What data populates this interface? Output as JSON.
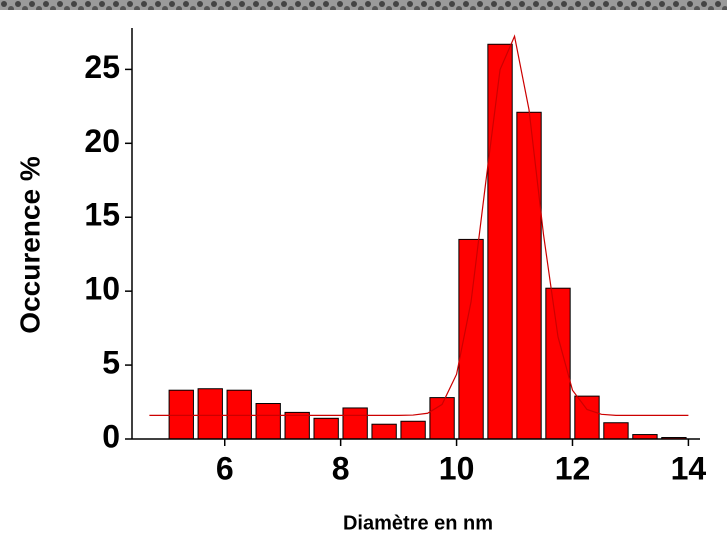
{
  "chart_data": {
    "type": "histogram",
    "x_label": "Diamètre en nm",
    "y_label": "Occurence %",
    "bins": [
      5.0,
      5.5,
      6.0,
      6.5,
      7.0,
      7.5,
      8.0,
      8.5,
      9.0,
      9.5,
      10.0,
      10.5,
      11.0,
      11.5,
      12.0,
      12.5,
      13.0,
      13.5,
      14.0
    ],
    "values": [
      3.3,
      3.4,
      3.3,
      2.4,
      1.8,
      1.4,
      2.1,
      1.0,
      1.2,
      2.8,
      13.5,
      26.7,
      22.1,
      10.2,
      2.9,
      1.1,
      0.3,
      0.1
    ],
    "color": "#ff0000",
    "fit": {
      "color": "#cc0000",
      "x": [
        4.7,
        8.5,
        9.0,
        9.25,
        9.5,
        9.75,
        10.0,
        10.25,
        10.5,
        10.75,
        11.0,
        11.25,
        11.5,
        11.75,
        12.0,
        12.25,
        12.5,
        12.75,
        13.5,
        14.0
      ],
      "values": [
        1.6,
        1.6,
        1.6,
        1.62,
        1.74,
        2.34,
        4.38,
        9.29,
        17.25,
        24.98,
        27.24,
        22.27,
        13.83,
        6.91,
        3.3,
        2.0,
        1.67,
        1.6,
        1.6,
        1.6
      ]
    },
    "xlim": [
      4.4,
      14.2
    ],
    "ylim": [
      0,
      27.8
    ],
    "xticks": [
      6,
      8,
      10,
      12,
      14
    ],
    "yticks": [
      0,
      5,
      10,
      15,
      20,
      25
    ]
  }
}
